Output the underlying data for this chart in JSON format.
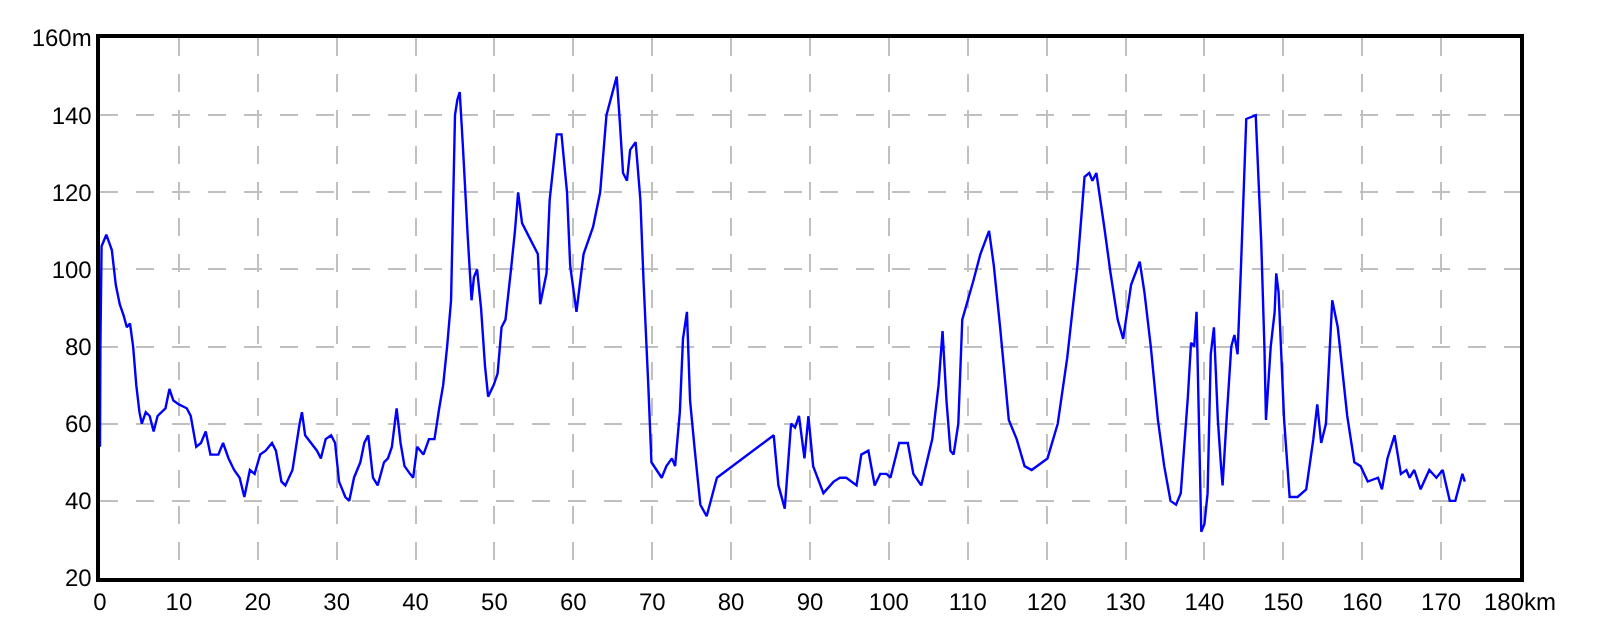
{
  "chart_data": {
    "type": "line",
    "grid": true,
    "marker": "none",
    "line_style": "solid",
    "xlim": [
      0,
      180
    ],
    "ylim": [
      20,
      160
    ],
    "xticks": [
      0,
      10,
      20,
      30,
      40,
      50,
      60,
      70,
      80,
      90,
      100,
      110,
      120,
      130,
      140,
      150,
      160,
      170,
      {
        "value": 180,
        "label": "180km"
      }
    ],
    "yticks": [
      20,
      40,
      60,
      80,
      100,
      120,
      140,
      {
        "value": 160,
        "label": "160m"
      }
    ],
    "x": [
      0,
      0.05,
      0.2,
      0.8,
      1.5,
      2,
      2.5,
      3,
      3.4,
      3.8,
      4.2,
      4.6,
      5,
      5.3,
      5.8,
      6.3,
      6.8,
      7.3,
      7.8,
      8.3,
      8.8,
      9.3,
      10,
      11,
      11.5,
      12.2,
      12.8,
      13.4,
      14,
      15,
      15.6,
      16.3,
      17,
      17.7,
      18.3,
      19,
      19.6,
      20.3,
      21,
      21.8,
      22.3,
      23,
      23.5,
      24.4,
      25.3,
      25.6,
      26,
      27.5,
      28,
      28.6,
      29.3,
      29.8,
      30.3,
      31.1,
      31.6,
      32.2,
      33,
      33.5,
      34,
      34.6,
      35.2,
      36,
      36.5,
      37,
      37.6,
      38.1,
      38.6,
      39.3,
      39.7,
      40.2,
      41,
      41.7,
      42.4,
      43,
      43.5,
      44,
      44.5,
      45,
      45.3,
      45.6,
      46,
      46.6,
      47.1,
      47.4,
      47.8,
      48.3,
      48.8,
      49.2,
      49.9,
      50.4,
      50.9,
      51.4,
      52.1,
      52.6,
      53,
      53.5,
      54.5,
      55.5,
      55.8,
      56.6,
      57,
      57.9,
      58.5,
      59.2,
      59.6,
      60.4,
      61.3,
      62.5,
      63.4,
      64.2,
      65.5,
      65.9,
      66.3,
      66.8,
      67.2,
      67.9,
      68.5,
      68.9,
      69.5,
      69.9,
      71.2,
      71.8,
      72.5,
      72.9,
      73.5,
      73.9,
      74.4,
      74.8,
      75.4,
      76.1,
      76.9,
      78.2,
      85.4,
      86,
      86.8,
      87.6,
      88.1,
      88.6,
      89.3,
      89.8,
      90.4,
      91.7,
      93,
      93.8,
      94.6,
      95.9,
      96.5,
      97.4,
      98.2,
      98.9,
      99.7,
      100.2,
      101.3,
      102.4,
      103.1,
      104.1,
      105.5,
      106.3,
      106.8,
      107.3,
      107.8,
      108.2,
      108.8,
      109.3,
      110.7,
      111.6,
      112.7,
      113.3,
      114.1,
      115.2,
      116.2,
      117.2,
      118.1,
      120.1,
      121.4,
      122.6,
      123.9,
      124.8,
      125.4,
      125.8,
      126.3,
      127.3,
      128.1,
      129,
      129.7,
      130.7,
      131.8,
      132.4,
      133.2,
      134.1,
      134.9,
      135.7,
      136.4,
      137,
      137.9,
      138.3,
      138.7,
      139,
      139.6,
      140,
      140.4,
      140.8,
      141.2,
      141.7,
      142.1,
      142.3,
      142.8,
      143.4,
      143.8,
      144.2,
      144.6,
      145.3,
      146.5,
      147.2,
      147.6,
      147.8,
      148.4,
      148.9,
      149.1,
      149.4,
      150.1,
      150.8,
      151.8,
      152.9,
      153.8,
      154.3,
      154.8,
      155.4,
      156.2,
      156.9,
      158.1,
      159,
      159.8,
      160.7,
      162,
      162.5,
      163.2,
      164.1,
      164.9,
      165.6,
      166,
      166.6,
      167.4,
      168.5,
      169.4,
      170.2,
      171.1,
      171.8,
      172.7,
      173
    ],
    "series": [
      {
        "color": "#0000ff",
        "values": [
          54,
          80,
          106,
          109,
          105,
          96,
          91,
          88,
          85,
          86,
          80,
          70,
          63,
          60,
          63,
          62,
          58,
          62,
          63,
          64,
          69,
          66,
          65,
          64,
          62,
          54,
          55,
          58,
          52,
          52,
          55,
          51,
          48,
          46,
          41,
          48,
          47,
          52,
          53,
          55,
          53,
          45,
          44,
          48,
          60,
          63,
          57,
          53,
          51,
          56,
          57,
          55,
          45,
          41,
          40,
          46,
          50,
          55,
          57,
          46,
          44,
          50,
          51,
          54,
          64,
          55,
          49,
          47,
          46,
          54,
          52,
          56,
          56,
          64,
          70,
          80,
          92,
          140,
          144,
          146,
          132,
          109,
          92,
          98,
          100,
          90,
          75,
          67,
          70,
          73,
          85,
          87,
          100,
          110,
          120,
          112,
          108,
          104,
          91,
          99,
          118,
          135,
          135,
          120,
          101,
          89,
          104,
          111,
          120,
          140,
          150,
          138,
          125,
          123,
          131,
          133,
          118,
          97,
          70,
          50,
          46,
          49,
          51,
          49,
          63,
          82,
          89,
          66,
          53,
          39,
          36,
          46,
          57,
          44,
          38,
          60,
          59,
          62,
          51,
          62,
          49,
          42,
          45,
          46,
          46,
          44,
          52,
          53,
          44,
          47,
          47,
          46,
          55,
          55,
          47,
          44,
          56,
          70,
          84,
          66,
          53,
          52,
          60,
          87,
          97,
          104,
          110,
          101,
          85,
          61,
          56,
          49,
          48,
          51,
          60,
          77,
          101,
          124,
          125,
          123,
          125,
          111,
          99,
          87,
          82,
          96,
          102,
          94,
          80,
          61,
          49,
          40,
          39,
          42,
          67,
          81,
          80,
          89,
          32,
          34,
          42,
          78,
          85,
          61,
          49,
          44,
          61,
          80,
          83,
          78,
          99,
          139,
          140,
          107,
          80,
          61,
          80,
          89,
          99,
          94,
          61,
          41,
          41,
          43,
          56,
          65,
          55,
          60,
          92,
          85,
          62,
          50,
          49,
          45,
          46,
          43,
          51,
          57,
          47,
          48,
          46,
          48,
          43,
          48,
          46,
          48,
          40,
          40,
          47,
          45
        ]
      }
    ]
  }
}
